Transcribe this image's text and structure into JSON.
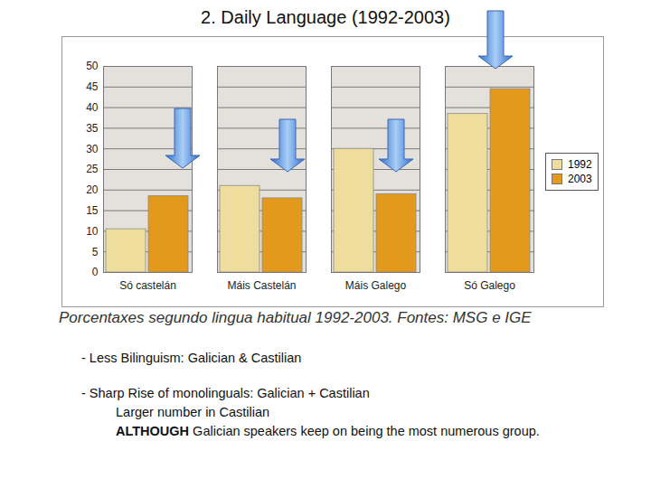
{
  "chart_data": {
    "type": "bar",
    "title": "2. Daily Language (1992-2003)",
    "caption": "Porcentaxes segundo lingua habitual 1992-2003. Fontes: MSG e IGE",
    "annotations": [
      "- Less Bilinguism: Galician & Castilian",
      "- Sharp Rise of monolinguals: Galician + Castilian",
      "Larger number in Castilian",
      "ALTHOUGH Galician speakers keep on being the most numerous group."
    ],
    "categories": [
      "Só castelán",
      "Máis Castelán",
      "Máis Galego",
      "Só Galego"
    ],
    "series": [
      {
        "name": "1992",
        "color": "#eedd9c",
        "values": [
          10.5,
          21,
          30,
          38.5
        ]
      },
      {
        "name": "2003",
        "color": "#e39a1c",
        "values": [
          18.5,
          18,
          19,
          44.5
        ]
      }
    ],
    "ylim": [
      0,
      50
    ],
    "yticks": [
      0,
      5,
      10,
      15,
      20,
      25,
      30,
      35,
      40,
      45,
      50
    ],
    "grid": true,
    "legend": "right"
  }
}
